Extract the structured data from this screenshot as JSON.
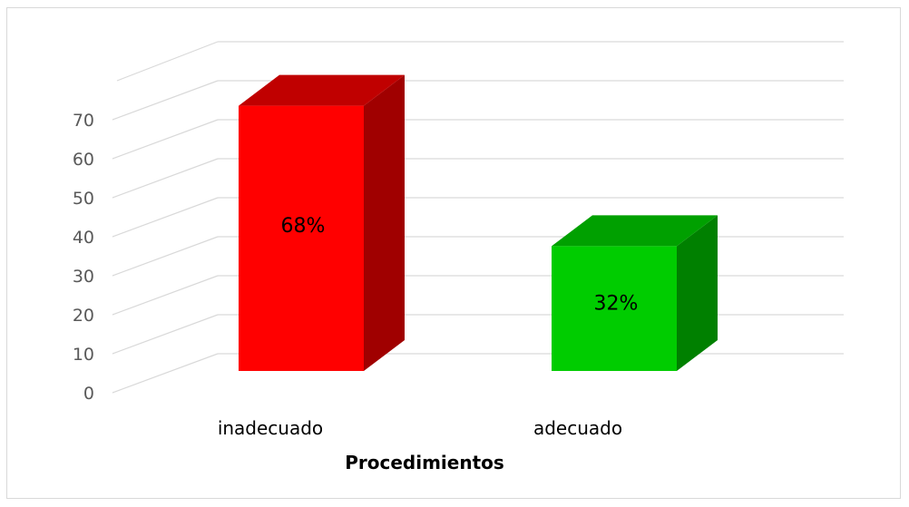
{
  "chart_data": {
    "type": "bar",
    "style": "3d-column",
    "categories": [
      "inadecuado",
      "adecuado"
    ],
    "values": [
      68,
      32
    ],
    "data_labels": [
      "68%",
      "32%"
    ],
    "colors": {
      "inadecuado": {
        "front": "#ff0000",
        "top": "#c00000",
        "side": "#a00000"
      },
      "adecuado": {
        "front": "#00cc00",
        "top": "#00a000",
        "side": "#008000"
      }
    },
    "title": "",
    "xlabel": "Procedimientos",
    "ylabel": "",
    "ylim": [
      0,
      70
    ],
    "yticks": [
      0,
      10,
      20,
      30,
      40,
      50,
      60,
      70
    ],
    "grid": true,
    "gridline_color": "#d9d9d9",
    "legend": "none"
  }
}
